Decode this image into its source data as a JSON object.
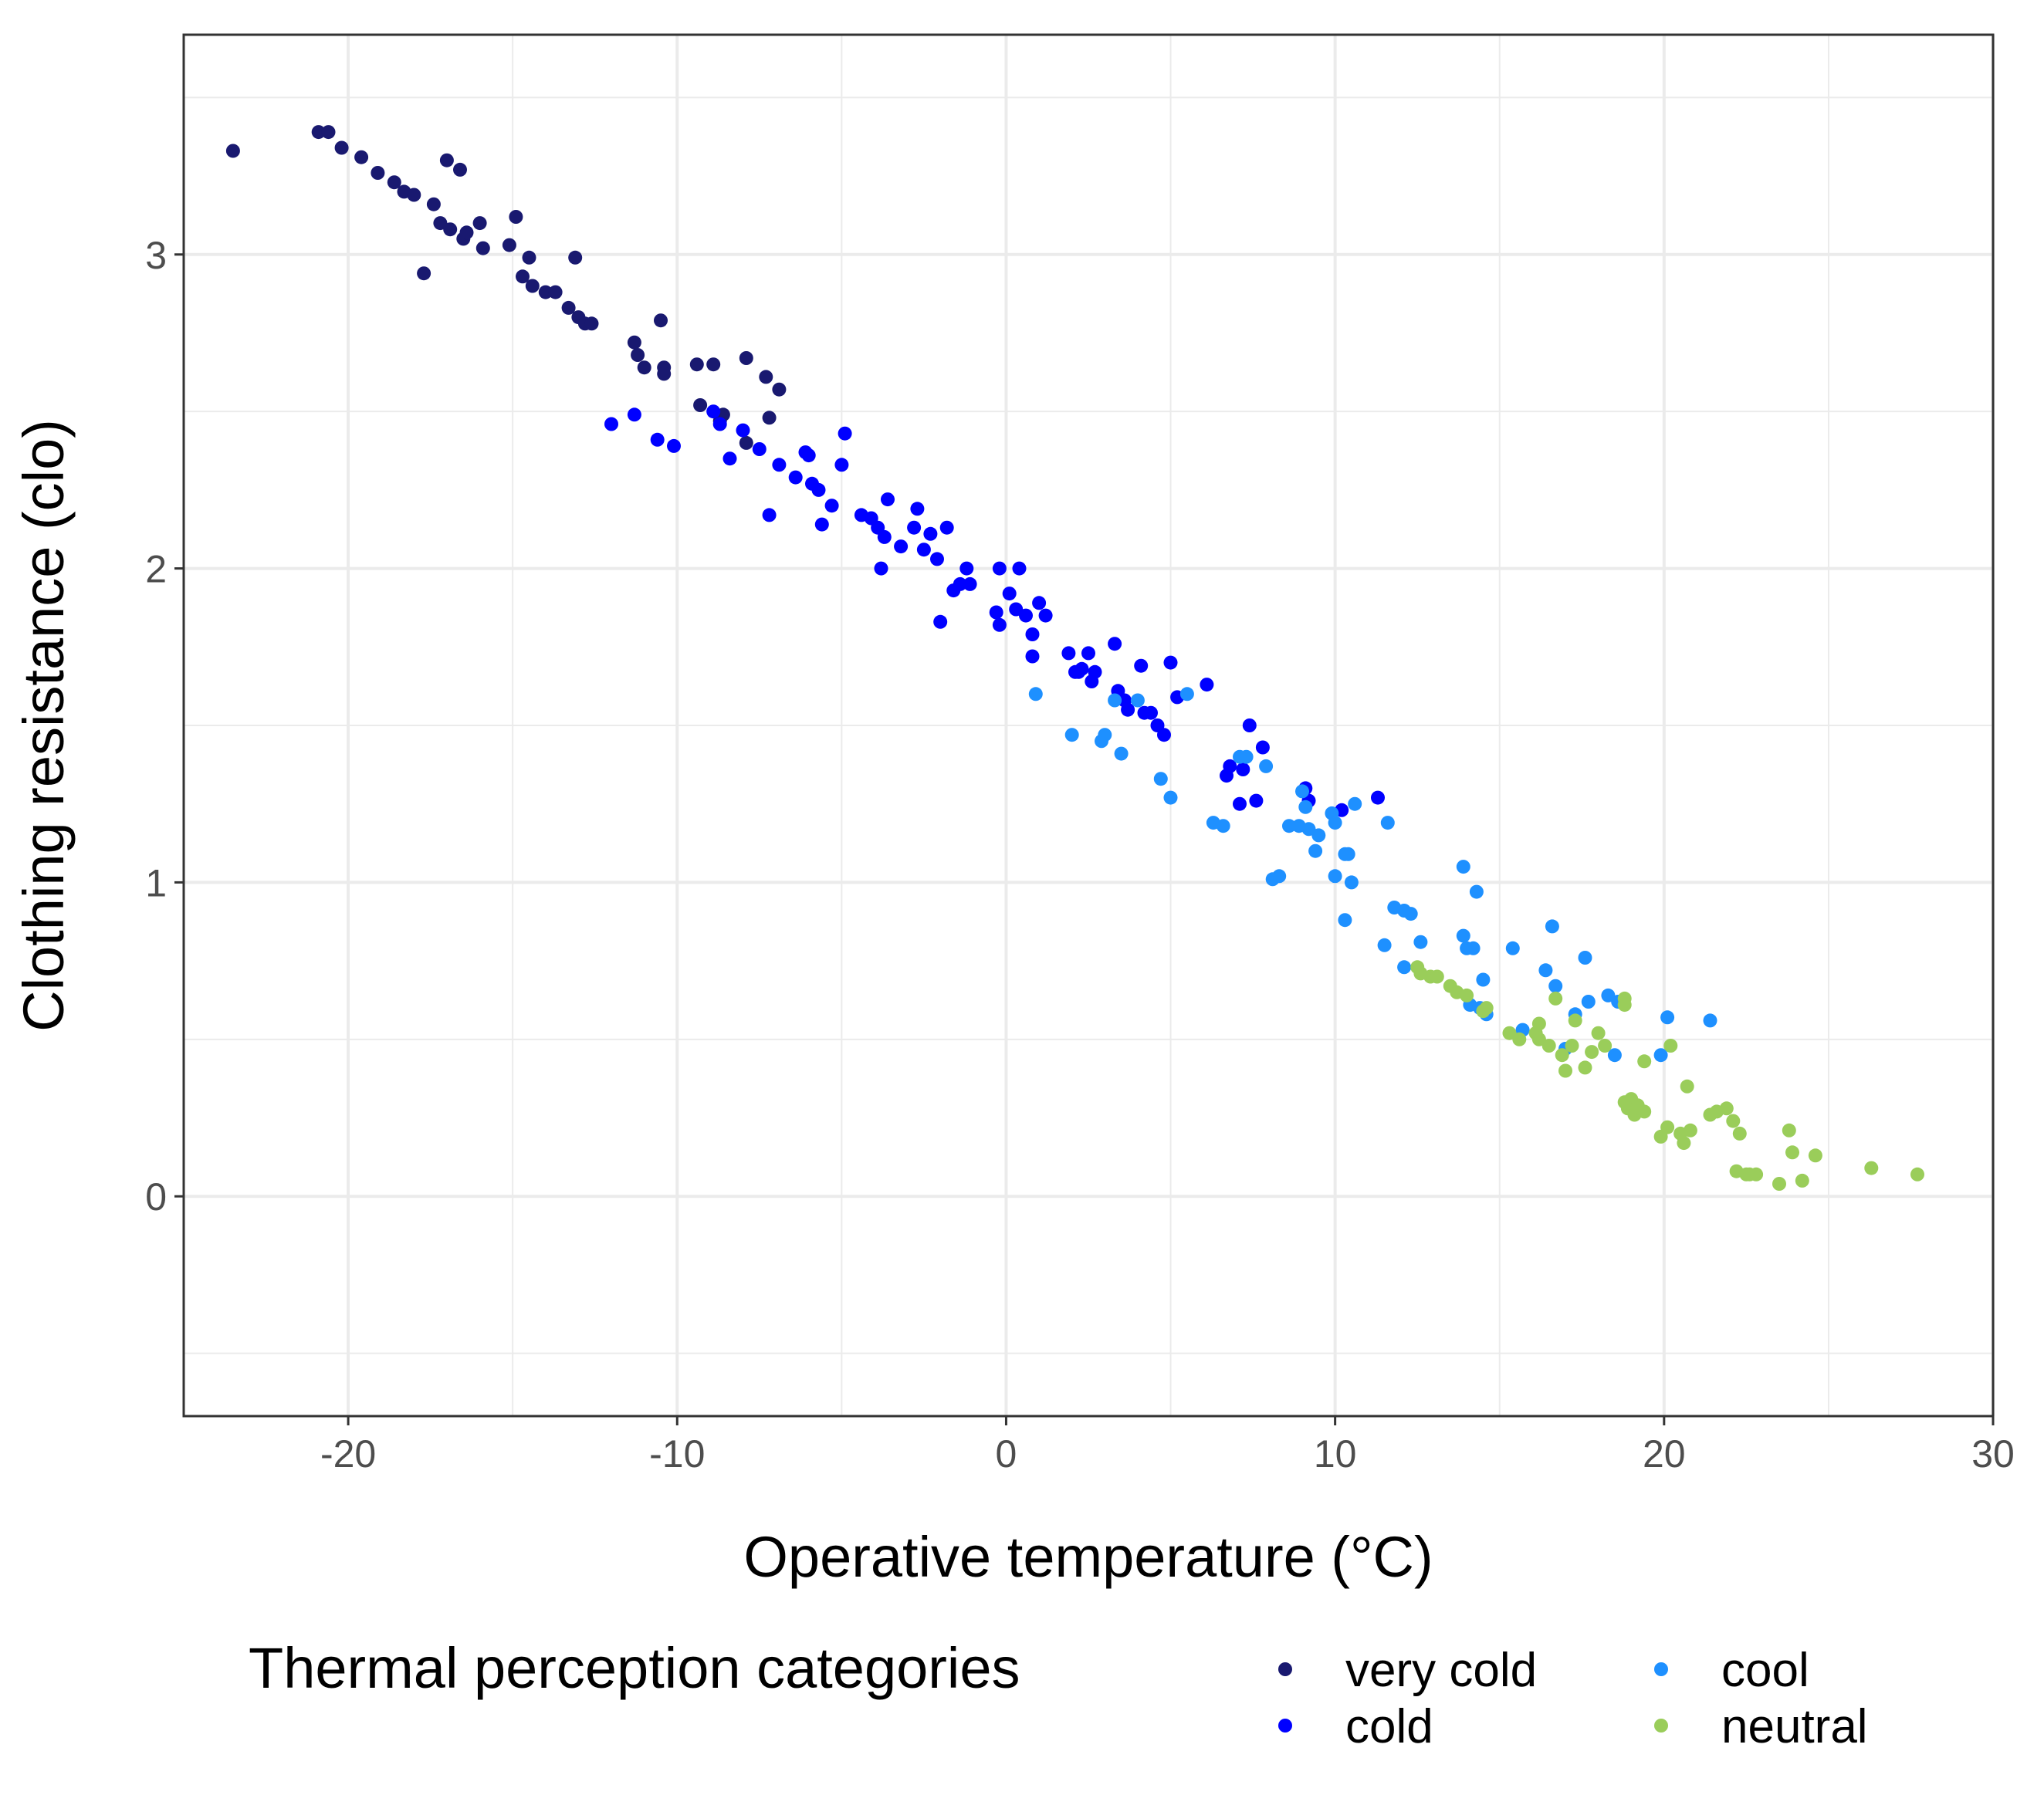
{
  "chart_data": {
    "type": "scatter",
    "xlabel": "Operative temperature (°C)",
    "ylabel": "Clothing resistance (clo)",
    "xlim": [
      -25,
      30
    ],
    "ylim": [
      -0.7,
      3.7
    ],
    "x_ticks": [
      -20,
      -10,
      0,
      10,
      20,
      30
    ],
    "x_tick_labels": [
      "-20",
      "-10",
      "0",
      "10",
      "20",
      "30"
    ],
    "y_ticks": [
      0,
      1,
      2,
      3
    ],
    "y_tick_labels": [
      "0",
      "1",
      "2",
      "3"
    ],
    "grid": true,
    "legend": {
      "title": "Thermal perception categories",
      "position": "bottom",
      "entries": [
        "very cold",
        "cold",
        "cool",
        "neutral"
      ]
    },
    "series": [
      {
        "name": "very cold",
        "color": "#191970",
        "points": [
          [
            -23.5,
            3.33
          ],
          [
            -20.9,
            3.39
          ],
          [
            -20.6,
            3.39
          ],
          [
            -20.2,
            3.34
          ],
          [
            -19.6,
            3.31
          ],
          [
            -19.1,
            3.26
          ],
          [
            -18.6,
            3.23
          ],
          [
            -18.3,
            3.2
          ],
          [
            -17.4,
            3.16
          ],
          [
            -17.2,
            3.1
          ],
          [
            -17.0,
            3.3
          ],
          [
            -16.9,
            3.08
          ],
          [
            -16.6,
            3.27
          ],
          [
            -16.5,
            3.05
          ],
          [
            -16.4,
            3.07
          ],
          [
            -16.0,
            3.1
          ],
          [
            -15.9,
            3.02
          ],
          [
            -17.7,
            2.94
          ],
          [
            -15.1,
            3.03
          ],
          [
            -14.9,
            3.12
          ],
          [
            -14.7,
            2.93
          ],
          [
            -14.5,
            2.99
          ],
          [
            -14.4,
            2.9
          ],
          [
            -14.0,
            2.88
          ],
          [
            -13.7,
            2.88
          ],
          [
            -13.3,
            2.83
          ],
          [
            -13.1,
            2.99
          ],
          [
            -13.0,
            2.8
          ],
          [
            -12.8,
            2.78
          ],
          [
            -12.6,
            2.78
          ],
          [
            -11.3,
            2.72
          ],
          [
            -11.2,
            2.68
          ],
          [
            -11.0,
            2.64
          ],
          [
            -10.5,
            2.79
          ],
          [
            -10.4,
            2.64
          ],
          [
            -10.4,
            2.62
          ],
          [
            -9.4,
            2.65
          ],
          [
            -8.9,
            2.65
          ],
          [
            -7.9,
            2.67
          ],
          [
            -7.3,
            2.61
          ],
          [
            -6.9,
            2.57
          ],
          [
            -9.3,
            2.52
          ],
          [
            -8.7,
            2.47
          ],
          [
            -7.9,
            2.4
          ],
          [
            -7.2,
            2.48
          ],
          [
            -8.6,
            2.49
          ],
          [
            -18.0,
            3.19
          ]
        ]
      },
      {
        "name": "cold",
        "color": "#0000ff",
        "points": [
          [
            -12.0,
            2.46
          ],
          [
            -11.3,
            2.49
          ],
          [
            -10.6,
            2.41
          ],
          [
            -10.1,
            2.39
          ],
          [
            -8.9,
            2.5
          ],
          [
            -8.7,
            2.46
          ],
          [
            -8.4,
            2.35
          ],
          [
            -8.0,
            2.44
          ],
          [
            -7.5,
            2.38
          ],
          [
            -7.2,
            2.17
          ],
          [
            -6.9,
            2.33
          ],
          [
            -6.4,
            2.29
          ],
          [
            -6.1,
            2.37
          ],
          [
            -6.0,
            2.36
          ],
          [
            -5.9,
            2.27
          ],
          [
            -5.7,
            2.25
          ],
          [
            -5.6,
            2.14
          ],
          [
            -5.3,
            2.2
          ],
          [
            -5.0,
            2.33
          ],
          [
            -4.9,
            2.43
          ],
          [
            -4.4,
            2.17
          ],
          [
            -4.1,
            2.16
          ],
          [
            -3.9,
            2.13
          ],
          [
            -3.7,
            2.1
          ],
          [
            -3.6,
            2.22
          ],
          [
            -3.8,
            2.0
          ],
          [
            -3.2,
            2.07
          ],
          [
            -2.8,
            2.13
          ],
          [
            -2.7,
            2.19
          ],
          [
            -2.5,
            2.06
          ],
          [
            -2.3,
            2.11
          ],
          [
            -2.1,
            2.03
          ],
          [
            -1.8,
            2.13
          ],
          [
            -1.6,
            1.93
          ],
          [
            -1.4,
            1.95
          ],
          [
            -1.2,
            2.0
          ],
          [
            -1.1,
            1.95
          ],
          [
            -2.0,
            1.83
          ],
          [
            -0.3,
            1.86
          ],
          [
            -0.2,
            2.0
          ],
          [
            -0.2,
            1.82
          ],
          [
            0.1,
            1.92
          ],
          [
            0.3,
            1.87
          ],
          [
            0.4,
            2.0
          ],
          [
            0.6,
            1.85
          ],
          [
            0.8,
            1.79
          ],
          [
            0.8,
            1.72
          ],
          [
            1.0,
            1.89
          ],
          [
            1.2,
            1.85
          ],
          [
            1.9,
            1.73
          ],
          [
            2.1,
            1.67
          ],
          [
            2.2,
            1.67
          ],
          [
            2.5,
            1.73
          ],
          [
            2.6,
            1.64
          ],
          [
            2.7,
            1.67
          ],
          [
            3.3,
            1.76
          ],
          [
            3.6,
            1.58
          ],
          [
            3.7,
            1.55
          ],
          [
            4.1,
            1.69
          ],
          [
            4.2,
            1.54
          ],
          [
            4.4,
            1.54
          ],
          [
            4.6,
            1.5
          ],
          [
            4.8,
            1.47
          ],
          [
            5.0,
            1.7
          ],
          [
            5.2,
            1.59
          ],
          [
            6.1,
            1.63
          ],
          [
            6.7,
            1.34
          ],
          [
            6.8,
            1.37
          ],
          [
            7.1,
            1.25
          ],
          [
            7.2,
            1.36
          ],
          [
            7.4,
            1.5
          ],
          [
            7.6,
            1.26
          ],
          [
            7.8,
            1.43
          ],
          [
            9.1,
            1.3
          ],
          [
            9.2,
            1.26
          ],
          [
            10.2,
            1.23
          ],
          [
            11.3,
            1.27
          ],
          [
            3.4,
            1.61
          ],
          [
            2.3,
            1.68
          ]
        ]
      },
      {
        "name": "cool",
        "color": "#1e90ff",
        "points": [
          [
            0.9,
            1.6
          ],
          [
            2.0,
            1.47
          ],
          [
            2.9,
            1.45
          ],
          [
            3.0,
            1.47
          ],
          [
            3.3,
            1.58
          ],
          [
            3.5,
            1.41
          ],
          [
            4.0,
            1.58
          ],
          [
            4.7,
            1.33
          ],
          [
            5.0,
            1.27
          ],
          [
            5.5,
            1.6
          ],
          [
            6.3,
            1.19
          ],
          [
            6.6,
            1.18
          ],
          [
            7.1,
            1.4
          ],
          [
            7.3,
            1.4
          ],
          [
            7.9,
            1.37
          ],
          [
            8.1,
            1.01
          ],
          [
            8.3,
            1.02
          ],
          [
            8.6,
            1.18
          ],
          [
            8.9,
            1.18
          ],
          [
            9.0,
            1.29
          ],
          [
            9.1,
            1.24
          ],
          [
            9.2,
            1.17
          ],
          [
            9.4,
            1.1
          ],
          [
            9.5,
            1.15
          ],
          [
            9.9,
            1.22
          ],
          [
            10.0,
            1.02
          ],
          [
            10.3,
            1.09
          ],
          [
            10.4,
            1.09
          ],
          [
            10.5,
            1.0
          ],
          [
            10.6,
            1.25
          ],
          [
            10.3,
            0.88
          ],
          [
            11.6,
            1.19
          ],
          [
            11.8,
            0.92
          ],
          [
            12.1,
            0.91
          ],
          [
            12.3,
            0.9
          ],
          [
            12.6,
            0.81
          ],
          [
            11.5,
            0.8
          ],
          [
            12.1,
            0.73
          ],
          [
            13.9,
            1.05
          ],
          [
            14.3,
            0.97
          ],
          [
            13.9,
            0.83
          ],
          [
            14.0,
            0.79
          ],
          [
            14.2,
            0.79
          ],
          [
            14.5,
            0.69
          ],
          [
            14.4,
            0.6
          ],
          [
            14.6,
            0.58
          ],
          [
            15.4,
            0.79
          ],
          [
            15.7,
            0.53
          ],
          [
            16.4,
            0.72
          ],
          [
            16.6,
            0.86
          ],
          [
            16.7,
            0.67
          ],
          [
            17.0,
            0.47
          ],
          [
            17.3,
            0.58
          ],
          [
            17.6,
            0.76
          ],
          [
            17.7,
            0.62
          ],
          [
            18.3,
            0.64
          ],
          [
            18.5,
            0.45
          ],
          [
            18.6,
            0.62
          ],
          [
            19.9,
            0.45
          ],
          [
            20.1,
            0.57
          ],
          [
            21.4,
            0.56
          ],
          [
            14.1,
            0.61
          ],
          [
            10.0,
            1.19
          ]
        ]
      },
      {
        "name": "neutral",
        "color": "#9acd5a",
        "points": [
          [
            12.5,
            0.73
          ],
          [
            12.6,
            0.71
          ],
          [
            12.9,
            0.7
          ],
          [
            13.1,
            0.7
          ],
          [
            13.5,
            0.67
          ],
          [
            13.7,
            0.65
          ],
          [
            14.0,
            0.64
          ],
          [
            14.5,
            0.59
          ],
          [
            14.6,
            0.6
          ],
          [
            15.3,
            0.52
          ],
          [
            15.6,
            0.5
          ],
          [
            16.1,
            0.52
          ],
          [
            16.2,
            0.55
          ],
          [
            16.5,
            0.48
          ],
          [
            16.7,
            0.63
          ],
          [
            16.9,
            0.45
          ],
          [
            17.0,
            0.4
          ],
          [
            17.2,
            0.48
          ],
          [
            17.3,
            0.56
          ],
          [
            17.6,
            0.41
          ],
          [
            17.8,
            0.46
          ],
          [
            18.0,
            0.52
          ],
          [
            18.2,
            0.48
          ],
          [
            18.8,
            0.63
          ],
          [
            18.8,
            0.61
          ],
          [
            18.8,
            0.3
          ],
          [
            18.9,
            0.28
          ],
          [
            19.0,
            0.31
          ],
          [
            19.1,
            0.26
          ],
          [
            19.2,
            0.29
          ],
          [
            19.4,
            0.27
          ],
          [
            19.4,
            0.43
          ],
          [
            19.9,
            0.19
          ],
          [
            20.1,
            0.22
          ],
          [
            20.2,
            0.48
          ],
          [
            20.5,
            0.2
          ],
          [
            20.6,
            0.17
          ],
          [
            20.7,
            0.35
          ],
          [
            20.8,
            0.21
          ],
          [
            21.4,
            0.26
          ],
          [
            21.6,
            0.27
          ],
          [
            21.9,
            0.28
          ],
          [
            22.1,
            0.24
          ],
          [
            22.2,
            0.08
          ],
          [
            22.3,
            0.2
          ],
          [
            22.5,
            0.07
          ],
          [
            22.8,
            0.07
          ],
          [
            23.5,
            0.04
          ],
          [
            23.8,
            0.21
          ],
          [
            23.9,
            0.14
          ],
          [
            24.2,
            0.05
          ],
          [
            24.6,
            0.13
          ],
          [
            26.3,
            0.09
          ],
          [
            27.7,
            0.07
          ],
          [
            22.6,
            0.07
          ],
          [
            16.2,
            0.5
          ]
        ]
      }
    ]
  }
}
